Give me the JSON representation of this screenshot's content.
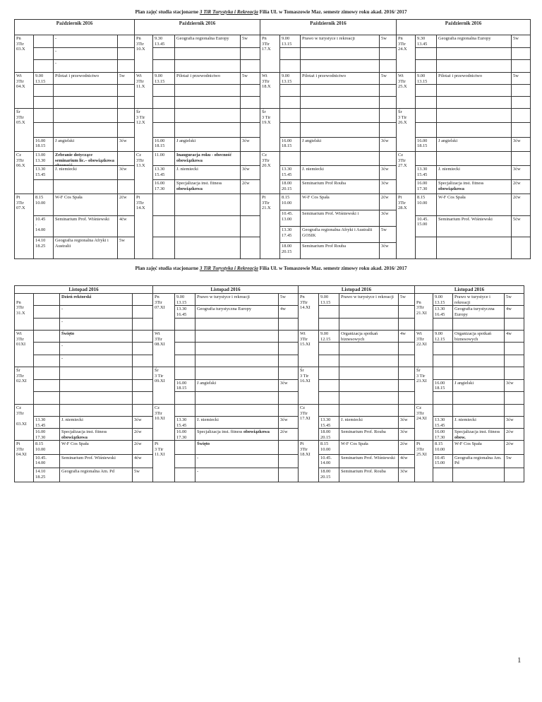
{
  "sections": [
    {
      "title": {
        "prefix": "Plan zajęć studia stacjonarne ",
        "underlined": "3 TiR Turystyka i Rekreacja",
        "suffix": " Filia UŁ w Tomaszowie Maz. semestr zimowy roku akad. 2016/ 2017"
      },
      "weeks": [
        {
          "header": "Październik 2016",
          "days": [
            {
              "label": "Pn\n3Tir\n03.X",
              "slots": [
                {
                  "subject": "-"
                },
                {
                  "subject": "-"
                },
                {
                  "subject": "-"
                }
              ]
            },
            {
              "label": "Wt\n3Tir\n04.X",
              "slots": [
                {
                  "time": "9.00\n13.15",
                  "subject": "Pilotaż i przewodnictwo",
                  "hours": "5w"
                },
                {},
                {}
              ]
            },
            {
              "label": "Śr\n3Tir\n05.X",
              "slots": [
                {},
                {},
                {
                  "time": "16.00\n18.15",
                  "subject": "J angielski",
                  "hours": "3ćw"
                }
              ]
            },
            {
              "label": "Cz\n3Tir\n06.X",
              "slots": [
                {
                  "time": "13.00\n13.30",
                  "subject_bold": "Zebranie dotyczące seminarium lic.– obowiązkowa  obecność"
                },
                {
                  "time": "13.30\n15.45",
                  "subject": "J. niemiecki",
                  "hours": "3ćw"
                },
                {}
              ]
            },
            {
              "label": "Pt\n3Tir\n07.X",
              "slots": [
                {
                  "time": "8.15\n10.00",
                  "subject": "W-F Cos Spała",
                  "hours": "2ćw"
                },
                {
                  "time": "10.45\n.\n14.00",
                  "subject": "Seminarium  Prof. Wiśniewski",
                  "hours": "4ćw"
                },
                {
                  "time": "14.10\n18.25",
                  "subject": "Geografia regionalna Afryki i Australii",
                  "hours": "5w"
                }
              ]
            }
          ]
        },
        {
          "header": "Październik 2016",
          "days": [
            {
              "label": "Pn\n3Tir\n10.X",
              "slots": [
                {
                  "time": "9.30\n13.45",
                  "subject": "Geografia regionalna Europy",
                  "hours": "5w"
                },
                {},
                {}
              ]
            },
            {
              "label": "Wt\n3Tir\n11.X",
              "slots": [
                {
                  "time": "9.00\n13.15",
                  "subject": "Pilotaż i przewodnictwo",
                  "hours": "5w"
                },
                {},
                {}
              ]
            },
            {
              "label": "Śr\n3 Tir\n12.X",
              "slots": [
                {},
                {},
                {
                  "time": "16.00\n18.15",
                  "subject": "J angielski",
                  "hours": "3ćw"
                }
              ]
            },
            {
              "label": "Cz\n3Tir\n13.X",
              "slots": [
                {
                  "time": "11.00",
                  "subject_bold": "Inauguracja roku - obecność obowiązkowa"
                },
                {
                  "time": "13.30\n15.45",
                  "subject": "J. niemiecki",
                  "hours": "3ćw"
                },
                {
                  "time": "16.00\n17.30",
                  "subject": "Specjalizacja inst. fitness",
                  "subject_bold": "obowiązkowa",
                  "hours": "2ćw"
                }
              ]
            },
            {
              "label": "Pt\n3Tir\n14.X",
              "slots": [
                {},
                {},
                {}
              ]
            }
          ]
        },
        {
          "header": "Październik 2016",
          "days": [
            {
              "label": "Pn\n3Tir\n17.X",
              "slots": [
                {
                  "time": "9.00\n13.15",
                  "subject": "Prawo w turystyce i rekreacji",
                  "hours": "5w"
                },
                {},
                {}
              ]
            },
            {
              "label": "Wt\n3Tir\n18.X",
              "slots": [
                {
                  "time": "9.00\n13.15",
                  "subject": "Pilotaż i przewodnictwo",
                  "hours": "5w"
                },
                {},
                {}
              ]
            },
            {
              "label": "Śr\n3 Tir\n19.X",
              "slots": [
                {},
                {},
                {
                  "time": "16.00\n18.15",
                  "subject": "J angielski",
                  "hours": "3ćw"
                }
              ]
            },
            {
              "label": "Cz\n3Tir\n20.X",
              "slots": [
                {},
                {
                  "time": "13.30\n15.45",
                  "subject": "J. niemiecki",
                  "hours": "3ćw"
                },
                {
                  "time": "18.00\n20.15",
                  "subject": "Seminarium Prof Rouba",
                  "hours": "3ćw"
                }
              ]
            },
            {
              "label": "Pt\n3Tir\n21.X",
              "slots": [
                {
                  "time": "8.15\n10.00",
                  "subject": "W-F Cos Spała",
                  "hours": "2ćw"
                },
                {
                  "time": "10.45.\n13.00",
                  "subject": "Seminarium  Prof. Wiśniewski i",
                  "hours": "3ćw"
                },
                {
                  "time": "13.30\n17.45",
                  "subject": "Geografia regionalna Afryki i Australii GOSIK",
                  "hours": "5w"
                },
                {
                  "time": "18.00\n20.15",
                  "subject": "Seminarium Prof Rouba",
                  "hours": "3ćw"
                }
              ]
            }
          ]
        },
        {
          "header": "Październik 2016",
          "days": [
            {
              "label": "Pn\n3Tir\n24.X",
              "slots": [
                {
                  "time": "9.30\n13.45",
                  "subject": "Geografia regionalna Europy",
                  "hours": "5w"
                },
                {},
                {}
              ]
            },
            {
              "label": "Wt\n3Tir\n25.X",
              "slots": [
                {
                  "time": "9.00\n13.15",
                  "subject": "Pilotaż i przewodnictwo",
                  "hours": "5w"
                },
                {},
                {}
              ]
            },
            {
              "label": "Śr\n3 Tir\n26.X",
              "slots": [
                {},
                {},
                {
                  "time": "16.00\n18.15",
                  "subject": "J angielski",
                  "hours": "3ćw"
                }
              ]
            },
            {
              "label": "Cz\n3Tir\n27.X",
              "slots": [
                {},
                {
                  "time": "13.30\n15.45",
                  "subject": "J. niemiecki",
                  "hours": "3ćw"
                },
                {
                  "time": "16.00\n17.30",
                  "subject": "Specjalizacja inst. fitness",
                  "subject_bold": "obowiązkowa",
                  "hours": "2ćw"
                }
              ]
            },
            {
              "label": "Pt\n3Tir\n28.X",
              "slots": [
                {
                  "time": "8.15\n10.00",
                  "subject": "W-F Cos Spała",
                  "hours": "2ćw"
                },
                {
                  "time": "10.45.\n15.00",
                  "subject": "Seminarium  Prof. Wiśniewski",
                  "hours": "5ćw"
                },
                {}
              ]
            }
          ]
        }
      ]
    },
    {
      "title": {
        "prefix": "Plan zajęć studia stacjonarne  ",
        "underlined": "3 TiR Turystyka i Rekreacja",
        "suffix": " Filia UŁ w Tomaszowie Maz. semestr zimowy roku akad. 2016/ 2017"
      },
      "weeks": [
        {
          "header": "Listopad  2016",
          "days": [
            {
              "label": "\nPn\n3Tir\n31.X",
              "slots": [
                {
                  "subject_bold": "Dzień rektorski"
                },
                {
                  "subject": "-"
                },
                {
                  "subject": "-"
                }
              ]
            },
            {
              "label": "Wt\n3Tir\n01XI",
              "slots": [
                {
                  "subject_bold": "Święto"
                },
                {
                  "subject": "-"
                },
                {
                  "subject": "-"
                }
              ]
            },
            {
              "label": "Śr\n3Tir\n02.XI",
              "slots": [
                {},
                {},
                {}
              ]
            },
            {
              "label": "Cz\n3Tir\n\n03.XI",
              "slots": [
                {},
                {
                  "time": "13.30\n15.45",
                  "subject": "J. niemiecki",
                  "hours": "3ćw"
                },
                {
                  "time": "16.00\n17.30",
                  "subject": "Specjalizacja inst. fitness",
                  "subject_bold": "obowiązkowa",
                  "hours": "2ćw"
                }
              ]
            },
            {
              "label": "Pt\n3Tir\n04.XI",
              "slots": [
                {
                  "time": "8.15\n10.00",
                  "subject": "W-F Cos Spała",
                  "hours": "2ćw"
                },
                {
                  "time": "10.45.\n14.00",
                  "subject": "Seminarium  Prof. Wiśniewski",
                  "hours": "4ćw"
                },
                {
                  "time": "14.10\n18.25",
                  "subject": "Geografia   regionalna Am. Pd",
                  "hours": "5w"
                }
              ]
            }
          ]
        },
        {
          "header": "Listopad  2016",
          "days": [
            {
              "label": "Pn\n3Tir\n07.XI",
              "slots": [
                {
                  "time": "9.00\n13.15",
                  "subject": "Prawo w turystyce i rekreacji",
                  "hours": "5w"
                },
                {
                  "time": " 13.30\n16.45",
                  "subject": "Geografia turystyczna Europy",
                  "hours": "4w"
                },
                {}
              ]
            },
            {
              "label": "Wt\n3Tir\n08.XI",
              "slots": [
                {},
                {},
                {}
              ]
            },
            {
              "label": "Śr\n3 Tir\n09.XI",
              "slots": [
                {},
                {
                  "time": "16.00\n18.15",
                  "subject": "J angielski",
                  "hours": "3ćw"
                },
                {}
              ]
            },
            {
              "label": "Cz\n3Tir\n10.XI",
              "slots": [
                {},
                {
                  "time": "13.30\n15.45",
                  "subject": "J. niemiecki",
                  "hours": "3ćw"
                },
                {
                  "time": "16.00\n17.30",
                  "subject": "Specjalizacja inst. fitness",
                  "subject_bold": "obowiązkowa",
                  "hours": "2ćw"
                }
              ]
            },
            {
              "label": "Pt\n3 Tir\n11.XI",
              "slots": [
                {
                  "subject_bold": "Święto"
                },
                {
                  "subject": "-"
                },
                {
                  "subject": "-"
                }
              ]
            }
          ]
        },
        {
          "header": "Listopad  2016",
          "days": [
            {
              "label": "Pn\n3Tir\n14.XI",
              "slots": [
                {
                  "time": "9.00\n13.15",
                  "subject": "Prawo w turystyce i rekreacji",
                  "hours": "5w"
                },
                {},
                {}
              ]
            },
            {
              "label": "Wt\n3Tir\n15.XI",
              "slots": [
                {
                  "time": "9.00\n12.15",
                  "subject": "Organizacja spotkań biznesowych",
                  "hours": "4w"
                },
                {},
                {}
              ]
            },
            {
              "label": "Śr\n3 Tir\n16.XI",
              "slots": [
                {},
                {},
                {}
              ]
            },
            {
              "label": "Cz\n3Tir\n17.XI",
              "slots": [
                {},
                {
                  "time": "13.30\n15.45",
                  "subject": "J. niemiecki",
                  "hours": "3ćw"
                },
                {
                  "time": "18.00\n20.15",
                  "subject": "Seminarium Prof. Rouba",
                  "hours": "3ćw"
                }
              ]
            },
            {
              "label": "Pt\n3Tir\n18.XI",
              "slots": [
                {
                  "time": "8.15\n10.00",
                  "subject": "W-F Cos Spała",
                  "hours": "2ćw"
                },
                {
                  "time": "10.45.\n14.00",
                  "subject": "Seminarium  Prof. Wiśniewski",
                  "hours": "4ćw"
                },
                {
                  "time": "18.00\n20.15",
                  "subject": "Seminarium Prof. Rouba",
                  "hours": "3ćw"
                }
              ]
            }
          ]
        },
        {
          "header": "Listopad  2016",
          "days": [
            {
              "label": "\nPn\n3Tir\n21.XI",
              "slots": [
                {
                  "time": "9.00\n13.15",
                  "subject": "Prawo w turystyce i rekreacji",
                  "hours": "5w"
                },
                {
                  "time": "13.30\n16.45",
                  "subject": "Geografia turystyczna Europy",
                  "hours": "4w"
                },
                {}
              ]
            },
            {
              "label": "Wt\n3Tir\n22.XI",
              "slots": [
                {
                  "time": "9.00\n12.15",
                  "subject": "Organizacja spotkań biznesowych",
                  "hours": "4w"
                },
                {},
                {}
              ]
            },
            {
              "label": "Śr\n3 Tir\n23.XI",
              "slots": [
                {},
                {
                  "time": "16.00\n18.15",
                  "subject": "J angielski",
                  "hours": "3ćw"
                },
                {}
              ]
            },
            {
              "label": "Cz\n3Tir\n24.XI",
              "slots": [
                {},
                {
                  "time": "13.30\n15.45",
                  "subject": "J. niemiecki",
                  "hours": "3ćw"
                },
                {
                  "time": "16.00\n17.30",
                  "subject": "Specjalizacja inst. fitness",
                  "subject_bold": "obow.",
                  "hours": "2ćw"
                }
              ]
            },
            {
              "label": "Pt\n3Tir\n25.XI",
              "slots": [
                {
                  "time": "8.15\n10.00",
                  "subject": "W-F Cos Spała",
                  "hours": "2ćw"
                },
                {
                  "time": "10.45\n15.00",
                  "subject": "Geografia regionalna Am. Pd",
                  "hours": "5w"
                },
                {}
              ]
            }
          ]
        }
      ]
    }
  ],
  "page_number": "1"
}
